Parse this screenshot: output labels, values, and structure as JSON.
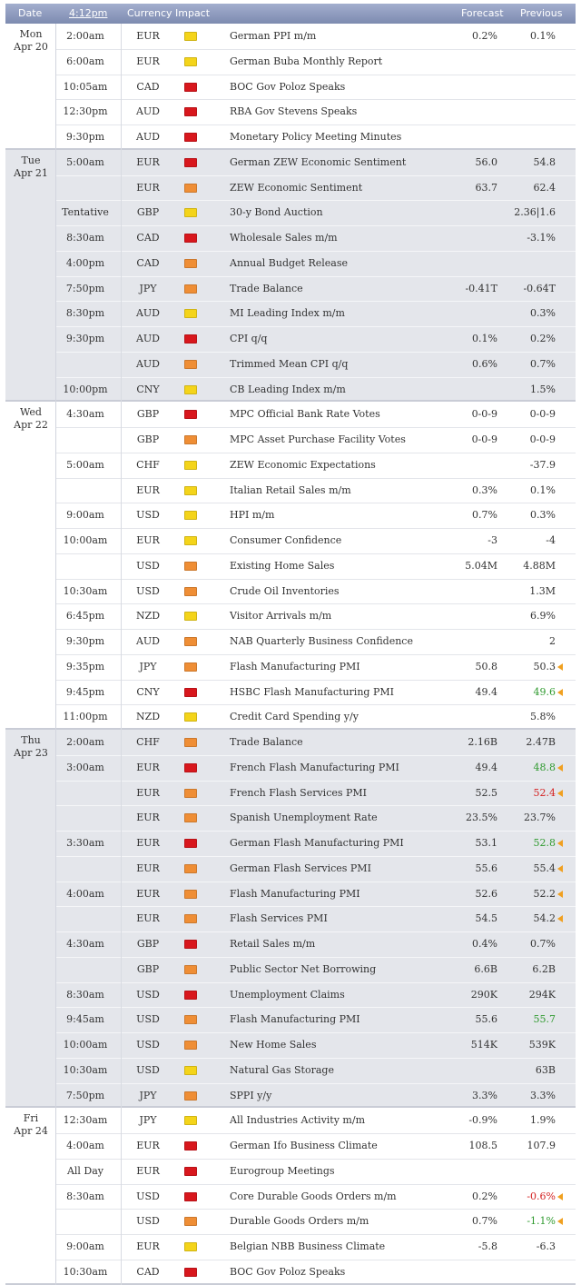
{
  "header": {
    "date": "Date",
    "time": "4:12pm",
    "currency": "Currency",
    "impact": "Impact",
    "forecast": "Forecast",
    "previous": "Previous"
  },
  "days": [
    {
      "day": "Mon",
      "date": "Apr 20",
      "rows": [
        {
          "time": "2:00am",
          "currency": "EUR",
          "impact": "low",
          "event": "German PPI m/m",
          "forecast": "0.2%",
          "previous": "0.1%"
        },
        {
          "time": "6:00am",
          "currency": "EUR",
          "impact": "low",
          "event": "German Buba Monthly Report"
        },
        {
          "time": "10:05am",
          "currency": "CAD",
          "impact": "high",
          "event": "BOC Gov Poloz Speaks"
        },
        {
          "time": "12:30pm",
          "currency": "AUD",
          "impact": "high",
          "event": "RBA Gov Stevens Speaks"
        },
        {
          "time": "9:30pm",
          "currency": "AUD",
          "impact": "high",
          "event": "Monetary Policy Meeting Minutes"
        }
      ]
    },
    {
      "day": "Tue",
      "date": "Apr 21",
      "rows": [
        {
          "time": "5:00am",
          "currency": "EUR",
          "impact": "high",
          "event": "German ZEW Economic Sentiment",
          "forecast": "56.0",
          "previous": "54.8"
        },
        {
          "currency": "EUR",
          "impact": "medium",
          "event": "ZEW Economic Sentiment",
          "forecast": "63.7",
          "previous": "62.4"
        },
        {
          "time": "Tentative",
          "currency": "GBP",
          "impact": "low",
          "event": "30-y Bond Auction",
          "previous": "2.36|1.6"
        },
        {
          "time": "8:30am",
          "currency": "CAD",
          "impact": "high",
          "event": "Wholesale Sales m/m",
          "previous": "-3.1%"
        },
        {
          "time": "4:00pm",
          "currency": "CAD",
          "impact": "medium",
          "event": "Annual Budget Release"
        },
        {
          "time": "7:50pm",
          "currency": "JPY",
          "impact": "medium",
          "event": "Trade Balance",
          "forecast": "-0.41T",
          "previous": "-0.64T"
        },
        {
          "time": "8:30pm",
          "currency": "AUD",
          "impact": "low",
          "event": "MI Leading Index m/m",
          "previous": "0.3%"
        },
        {
          "time": "9:30pm",
          "currency": "AUD",
          "impact": "high",
          "event": "CPI q/q",
          "forecast": "0.1%",
          "previous": "0.2%"
        },
        {
          "currency": "AUD",
          "impact": "medium",
          "event": "Trimmed Mean CPI q/q",
          "forecast": "0.6%",
          "previous": "0.7%"
        },
        {
          "time": "10:00pm",
          "currency": "CNY",
          "impact": "low",
          "event": "CB Leading Index m/m",
          "previous": "1.5%"
        }
      ]
    },
    {
      "day": "Wed",
      "date": "Apr 22",
      "rows": [
        {
          "time": "4:30am",
          "currency": "GBP",
          "impact": "high",
          "event": "MPC Official Bank Rate Votes",
          "forecast": "0-0-9",
          "previous": "0-0-9"
        },
        {
          "currency": "GBP",
          "impact": "medium",
          "event": "MPC Asset Purchase Facility Votes",
          "forecast": "0-0-9",
          "previous": "0-0-9"
        },
        {
          "time": "5:00am",
          "currency": "CHF",
          "impact": "low",
          "event": "ZEW Economic Expectations",
          "previous": "-37.9"
        },
        {
          "currency": "EUR",
          "impact": "low",
          "event": "Italian Retail Sales m/m",
          "forecast": "0.3%",
          "previous": "0.1%"
        },
        {
          "time": "9:00am",
          "currency": "USD",
          "impact": "low",
          "event": "HPI m/m",
          "forecast": "0.7%",
          "previous": "0.3%"
        },
        {
          "time": "10:00am",
          "currency": "EUR",
          "impact": "low",
          "event": "Consumer Confidence",
          "forecast": "-3",
          "previous": "-4"
        },
        {
          "currency": "USD",
          "impact": "medium",
          "event": "Existing Home Sales",
          "forecast": "5.04M",
          "previous": "4.88M"
        },
        {
          "time": "10:30am",
          "currency": "USD",
          "impact": "medium",
          "event": "Crude Oil Inventories",
          "previous": "1.3M"
        },
        {
          "time": "6:45pm",
          "currency": "NZD",
          "impact": "low",
          "event": "Visitor Arrivals m/m",
          "previous": "6.9%"
        },
        {
          "time": "9:30pm",
          "currency": "AUD",
          "impact": "medium",
          "event": "NAB Quarterly Business Confidence",
          "previous": "2"
        },
        {
          "time": "9:35pm",
          "currency": "JPY",
          "impact": "medium",
          "event": "Flash Manufacturing PMI",
          "forecast": "50.8",
          "previous": "50.3",
          "revised": true
        },
        {
          "time": "9:45pm",
          "currency": "CNY",
          "impact": "high",
          "event": "HSBC Flash Manufacturing PMI",
          "forecast": "49.4",
          "previous": "49.6",
          "previous_color": "green",
          "revised": true
        },
        {
          "time": "11:00pm",
          "currency": "NZD",
          "impact": "low",
          "event": "Credit Card Spending y/y",
          "previous": "5.8%"
        }
      ]
    },
    {
      "day": "Thu",
      "date": "Apr 23",
      "rows": [
        {
          "time": "2:00am",
          "currency": "CHF",
          "impact": "medium",
          "event": "Trade Balance",
          "forecast": "2.16B",
          "previous": "2.47B"
        },
        {
          "time": "3:00am",
          "currency": "EUR",
          "impact": "high",
          "event": "French Flash Manufacturing PMI",
          "forecast": "49.4",
          "previous": "48.8",
          "previous_color": "green",
          "revised": true
        },
        {
          "currency": "EUR",
          "impact": "medium",
          "event": "French Flash Services PMI",
          "forecast": "52.5",
          "previous": "52.4",
          "previous_color": "red",
          "revised": true
        },
        {
          "currency": "EUR",
          "impact": "medium",
          "event": "Spanish Unemployment Rate",
          "forecast": "23.5%",
          "previous": "23.7%"
        },
        {
          "time": "3:30am",
          "currency": "EUR",
          "impact": "high",
          "event": "German Flash Manufacturing PMI",
          "forecast": "53.1",
          "previous": "52.8",
          "previous_color": "green",
          "revised": true
        },
        {
          "currency": "EUR",
          "impact": "medium",
          "event": "German Flash Services PMI",
          "forecast": "55.6",
          "previous": "55.4",
          "revised": true
        },
        {
          "time": "4:00am",
          "currency": "EUR",
          "impact": "medium",
          "event": "Flash Manufacturing PMI",
          "forecast": "52.6",
          "previous": "52.2",
          "revised": true
        },
        {
          "currency": "EUR",
          "impact": "medium",
          "event": "Flash Services PMI",
          "forecast": "54.5",
          "previous": "54.2",
          "revised": true
        },
        {
          "time": "4:30am",
          "currency": "GBP",
          "impact": "high",
          "event": "Retail Sales m/m",
          "forecast": "0.4%",
          "previous": "0.7%"
        },
        {
          "currency": "GBP",
          "impact": "medium",
          "event": "Public Sector Net Borrowing",
          "forecast": "6.6B",
          "previous": "6.2B"
        },
        {
          "time": "8:30am",
          "currency": "USD",
          "impact": "high",
          "event": "Unemployment Claims",
          "forecast": "290K",
          "previous": "294K"
        },
        {
          "time": "9:45am",
          "currency": "USD",
          "impact": "medium",
          "event": "Flash Manufacturing PMI",
          "forecast": "55.6",
          "previous": "55.7",
          "previous_color": "green"
        },
        {
          "time": "10:00am",
          "currency": "USD",
          "impact": "medium",
          "event": "New Home Sales",
          "forecast": "514K",
          "previous": "539K"
        },
        {
          "time": "10:30am",
          "currency": "USD",
          "impact": "low",
          "event": "Natural Gas Storage",
          "previous": "63B"
        },
        {
          "time": "7:50pm",
          "currency": "JPY",
          "impact": "medium",
          "event": "SPPI y/y",
          "forecast": "3.3%",
          "previous": "3.3%"
        }
      ]
    },
    {
      "day": "Fri",
      "date": "Apr 24",
      "rows": [
        {
          "time": "12:30am",
          "currency": "JPY",
          "impact": "low",
          "event": "All Industries Activity m/m",
          "forecast": "-0.9%",
          "previous": "1.9%"
        },
        {
          "time": "4:00am",
          "currency": "EUR",
          "impact": "high",
          "event": "German Ifo Business Climate",
          "forecast": "108.5",
          "previous": "107.9"
        },
        {
          "time": "All Day",
          "currency": "EUR",
          "impact": "high",
          "event": "Eurogroup Meetings"
        },
        {
          "time": "8:30am",
          "currency": "USD",
          "impact": "high",
          "event": "Core Durable Goods Orders m/m",
          "forecast": "0.2%",
          "previous": "-0.6%",
          "previous_color": "red",
          "revised": true
        },
        {
          "currency": "USD",
          "impact": "medium",
          "event": "Durable Goods Orders m/m",
          "forecast": "0.7%",
          "previous": "-1.1%",
          "previous_color": "green",
          "revised": true
        },
        {
          "time": "9:00am",
          "currency": "EUR",
          "impact": "low",
          "event": "Belgian NBB Business Climate",
          "forecast": "-5.8",
          "previous": "-6.3"
        },
        {
          "time": "10:30am",
          "currency": "CAD",
          "impact": "high",
          "event": "BOC Gov Poloz Speaks"
        }
      ]
    }
  ]
}
